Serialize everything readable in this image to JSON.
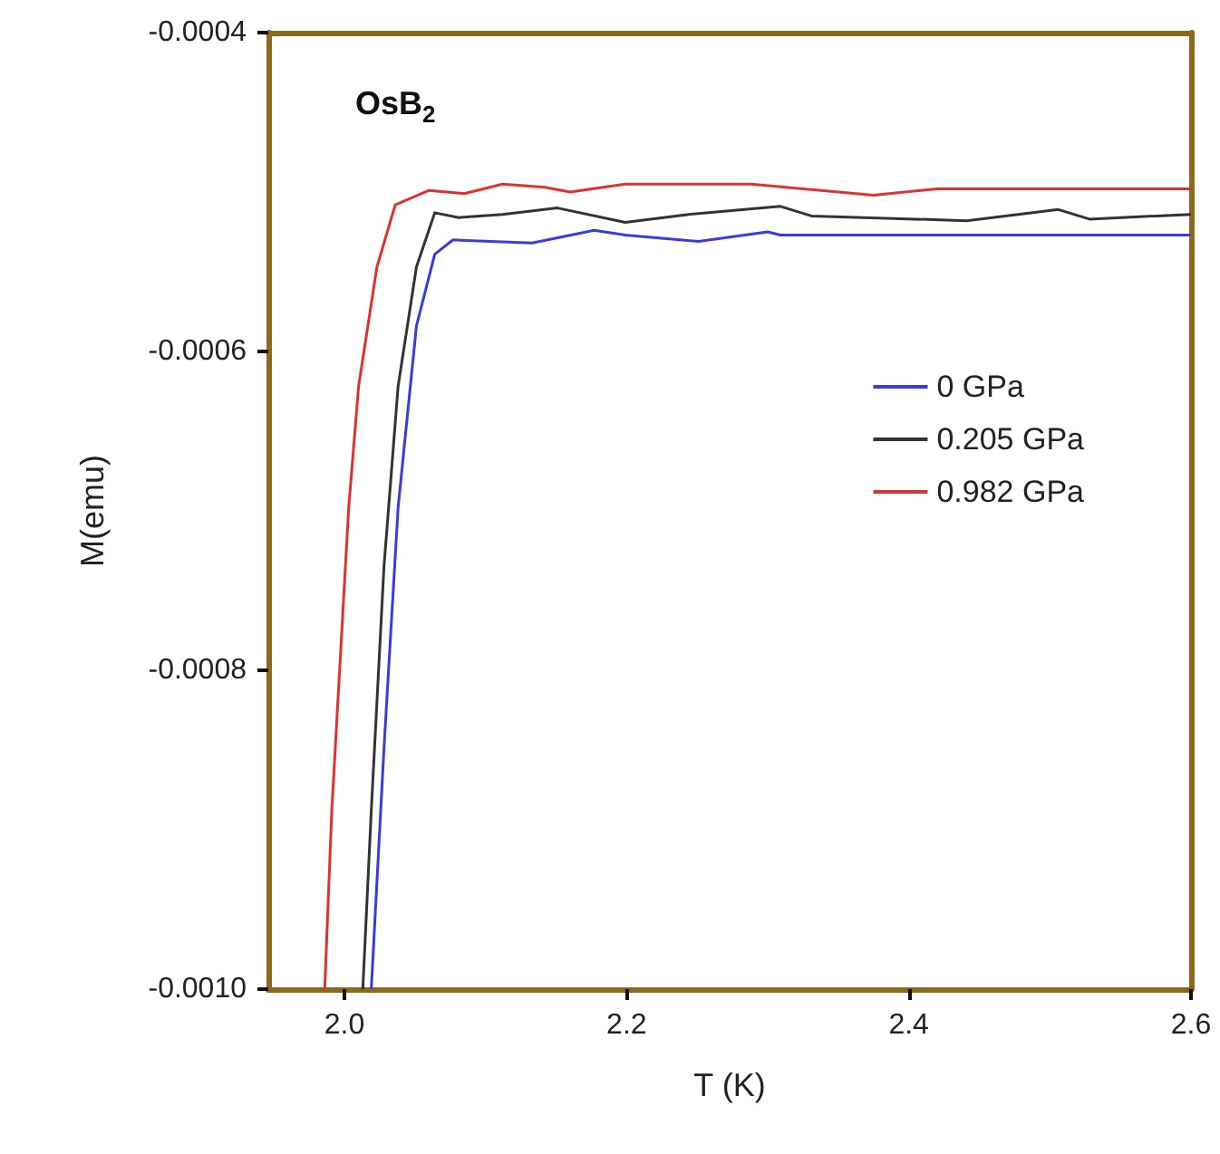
{
  "chart_data": {
    "type": "line",
    "xlabel": "T (K)",
    "ylabel": "M(emu)",
    "annotations": [
      "OsB$_{2}$"
    ],
    "xlim": [
      1.946,
      2.6
    ],
    "xticks": [
      {
        "value": 2,
        "label": "2.0"
      },
      2.2,
      2.4,
      2.6
    ],
    "ylim": [
      -0.001,
      -0.0004
    ],
    "yticks": [
      {
        "value": -0.001,
        "label": "-0.0010"
      },
      {
        "value": -0.0008,
        "label": "-0.0008"
      },
      {
        "value": -0.0006,
        "label": "-0.0006"
      },
      {
        "value": -0.0004,
        "label": "-0.0004"
      }
    ],
    "grid": false,
    "legend": "right",
    "marker": "none",
    "line_style": "solid",
    "series": [
      {
        "name": "0 GPa",
        "color": "#3a3ae0",
        "x": [
          2.019,
          2.028,
          2.038,
          2.051,
          2.064,
          2.077,
          2.133,
          2.177,
          2.199,
          2.251,
          2.3,
          2.309,
          2.6
        ],
        "values": [
          -0.001,
          -0.000849,
          -0.000698,
          -0.000584,
          -0.000539,
          -0.00053,
          -0.000532,
          -0.000524,
          -0.000527,
          -0.000531,
          -0.000525,
          -0.000527,
          -0.000527
        ]
      },
      {
        "name": "0.205 GPa",
        "color": "#333333",
        "x": [
          2.013,
          2.019,
          2.028,
          2.038,
          2.051,
          2.064,
          2.081,
          2.112,
          2.151,
          2.199,
          2.244,
          2.309,
          2.331,
          2.441,
          2.506,
          2.528,
          2.6
        ],
        "values": [
          -0.001,
          -0.000888,
          -0.000735,
          -0.000622,
          -0.000547,
          -0.000513,
          -0.000516,
          -0.000514,
          -0.00051,
          -0.000519,
          -0.000514,
          -0.000509,
          -0.000515,
          -0.000518,
          -0.000511,
          -0.000517,
          -0.000514
        ]
      },
      {
        "name": "0.982 GPa",
        "color": "#e03030",
        "x": [
          1.986,
          1.991,
          2.003,
          2.01,
          2.023,
          2.036,
          2.06,
          2.085,
          2.112,
          2.142,
          2.16,
          2.199,
          2.288,
          2.375,
          2.42,
          2.551,
          2.6
        ],
        "values": [
          -0.001,
          -0.000888,
          -0.000698,
          -0.000622,
          -0.000547,
          -0.000508,
          -0.000499,
          -0.000501,
          -0.000495,
          -0.000497,
          -0.0005,
          -0.000495,
          -0.000495,
          -0.000502,
          -0.000498,
          -0.000498,
          -0.000498
        ]
      }
    ]
  }
}
